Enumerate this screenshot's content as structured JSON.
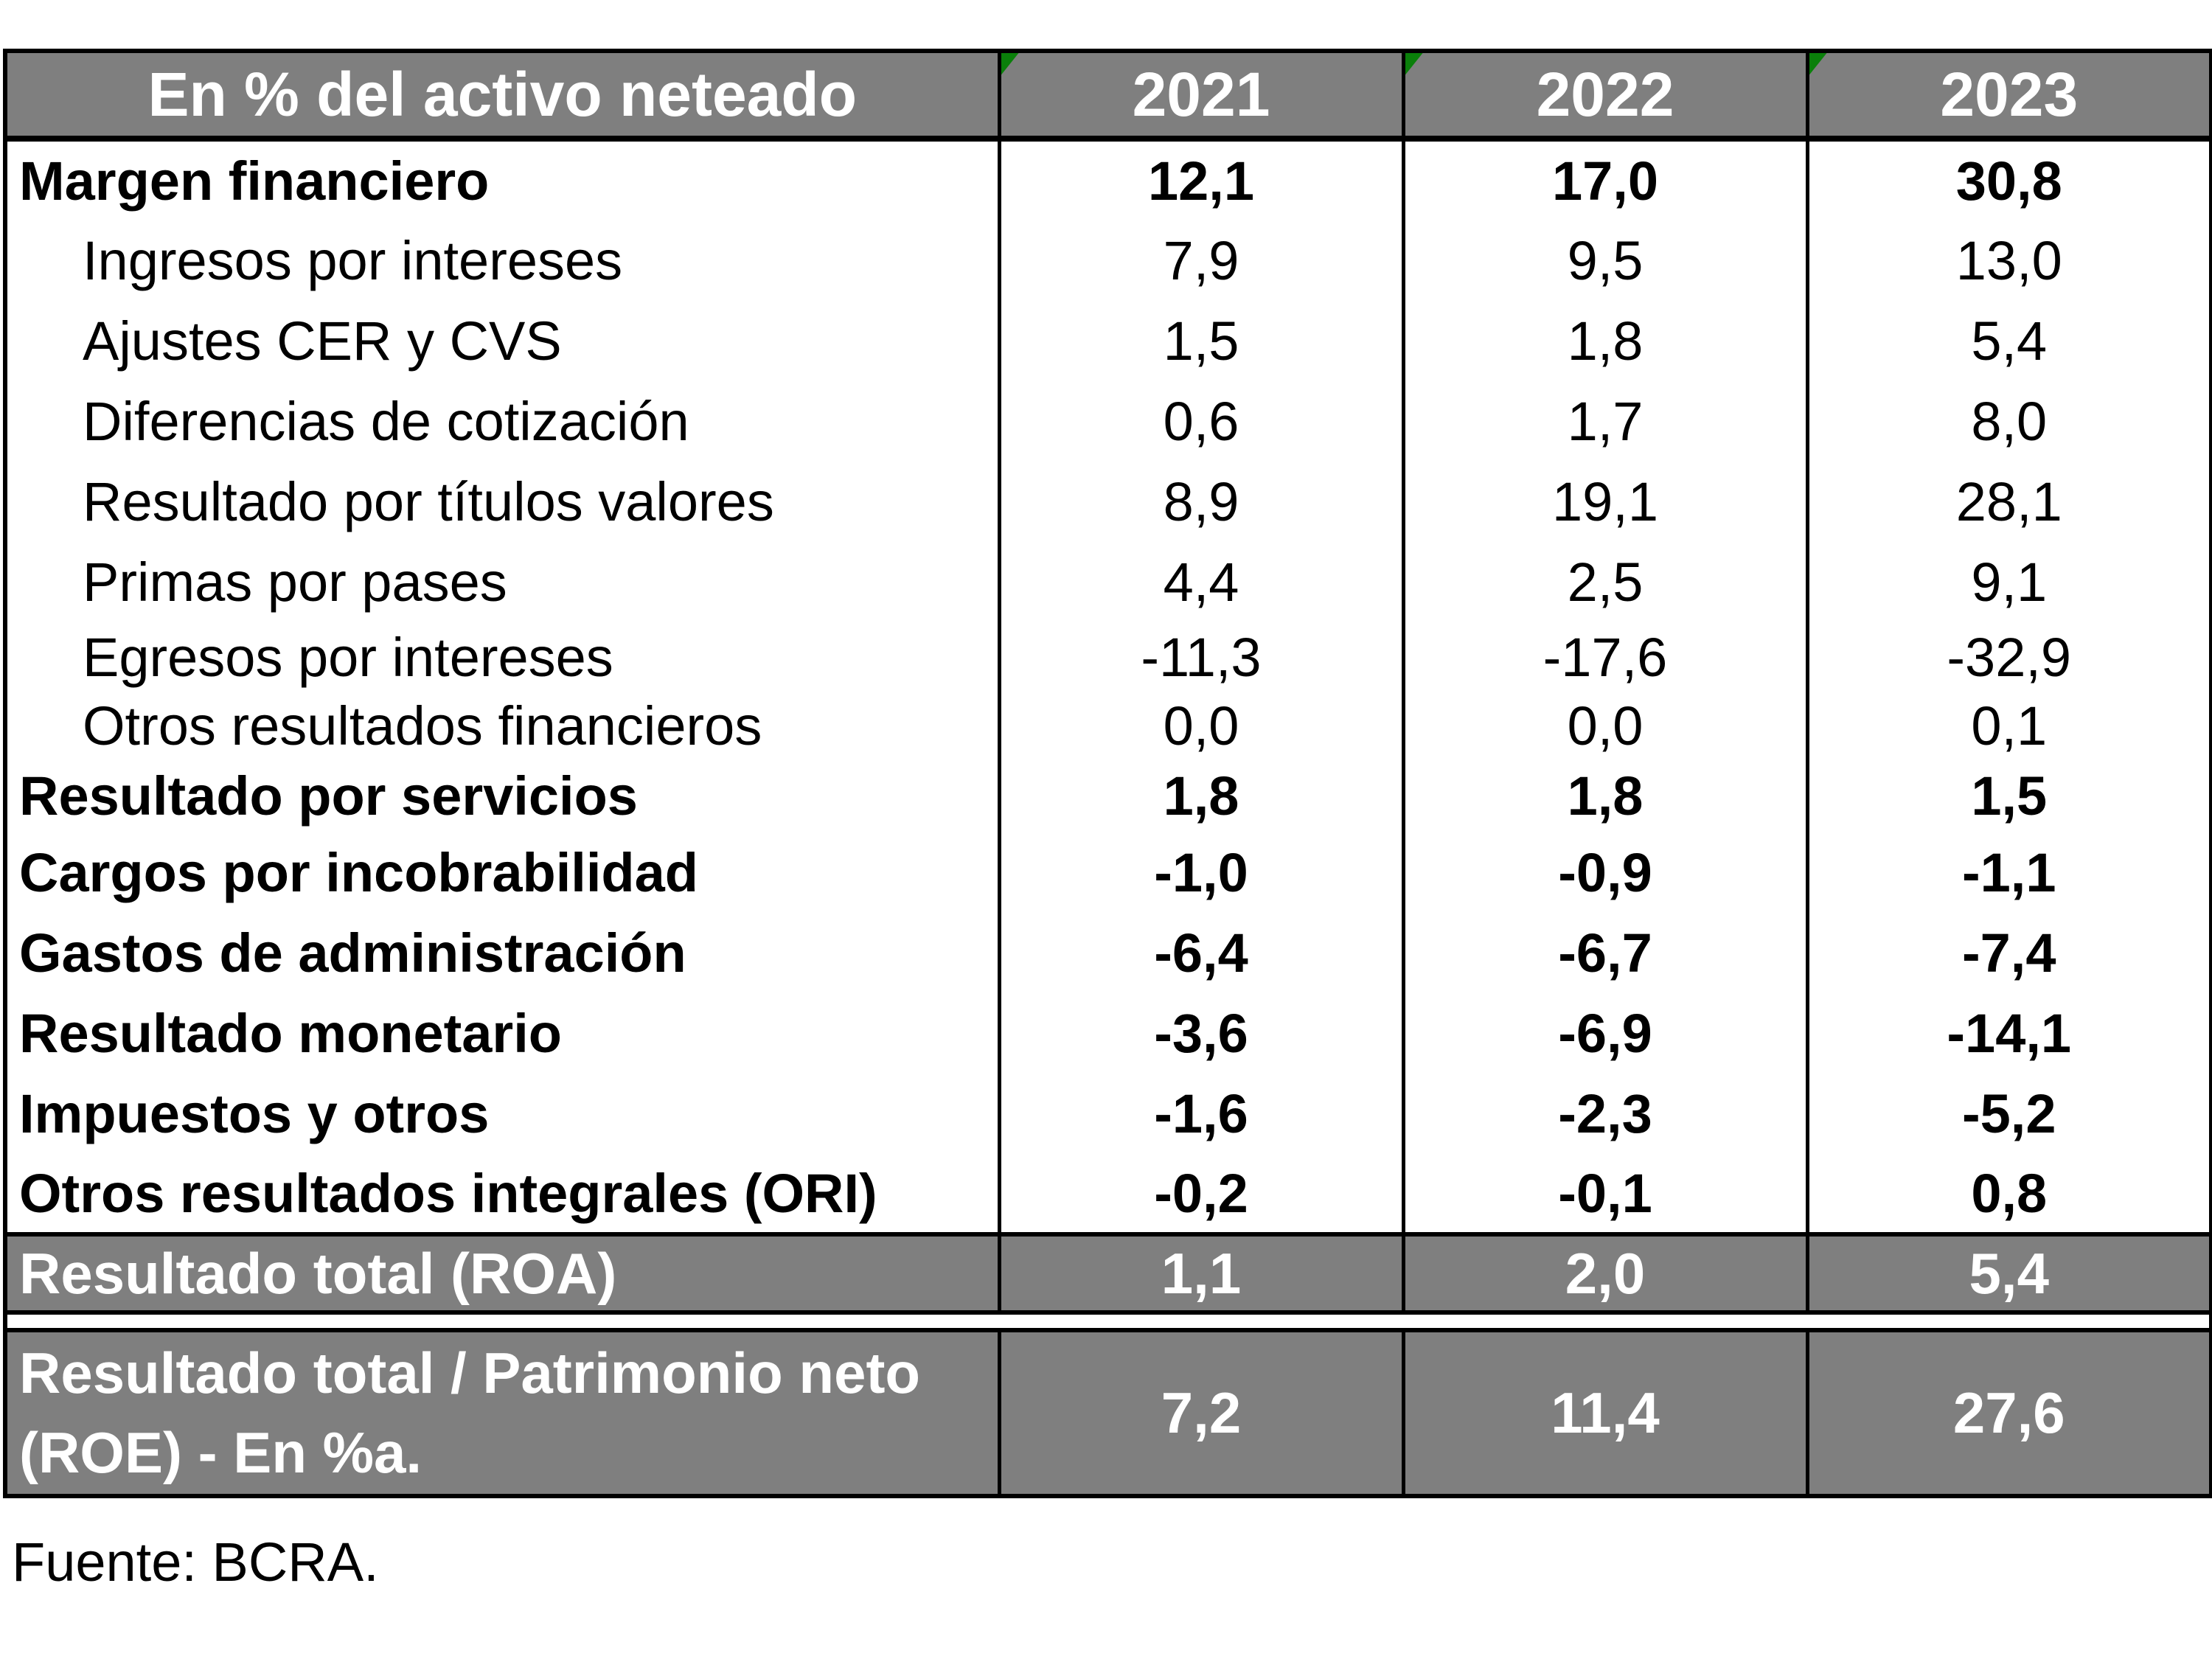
{
  "chart_data": {
    "type": "table",
    "title": "En % del activo neteado",
    "columns": [
      "2021",
      "2022",
      "2023"
    ],
    "rows": [
      {
        "label": "Margen financiero",
        "type": "section",
        "values": [
          "12,1",
          "17,0",
          "30,8"
        ]
      },
      {
        "label": "Ingresos por intereses",
        "type": "item",
        "values": [
          "7,9",
          "9,5",
          "13,0"
        ]
      },
      {
        "label": "Ajustes CER y CVS",
        "type": "item",
        "values": [
          "1,5",
          "1,8",
          "5,4"
        ]
      },
      {
        "label": "Diferencias de cotización",
        "type": "item",
        "values": [
          "0,6",
          "1,7",
          "8,0"
        ]
      },
      {
        "label": "Resultado por títulos valores",
        "type": "item",
        "values": [
          "8,9",
          "19,1",
          "28,1"
        ]
      },
      {
        "label": "Primas por pases",
        "type": "item",
        "values": [
          "4,4",
          "2,5",
          "9,1"
        ]
      },
      {
        "label": "Egresos por intereses",
        "type": "item",
        "values": [
          "-11,3",
          "-17,6",
          "-32,9"
        ]
      },
      {
        "label": "Otros resultados financieros",
        "type": "item",
        "values": [
          "0,0",
          "0,0",
          "0,1"
        ]
      },
      {
        "label": "Resultado por servicios",
        "type": "section",
        "values": [
          "1,8",
          "1,8",
          "1,5"
        ]
      },
      {
        "label": "Cargos por incobrabilidad",
        "type": "section",
        "values": [
          "-1,0",
          "-0,9",
          "-1,1"
        ]
      },
      {
        "label": "Gastos de administración",
        "type": "section",
        "values": [
          "-6,4",
          "-6,7",
          "-7,4"
        ]
      },
      {
        "label": "Resultado monetario",
        "type": "section",
        "values": [
          "-3,6",
          "-6,9",
          "-14,1"
        ]
      },
      {
        "label": "Impuestos  y otros",
        "type": "section",
        "values": [
          "-1,6",
          "-2,3",
          "-5,2"
        ]
      },
      {
        "label": "Otros resultados integrales (ORI)",
        "type": "section",
        "values": [
          "-0,2",
          "-0,1",
          "0,8"
        ]
      }
    ],
    "summary_rows": [
      {
        "label": "Resultado total (ROA)",
        "values": [
          "1,1",
          "2,0",
          "5,4"
        ]
      },
      {
        "label": "Resultado total / Patrimonio neto (ROE) - En %a.",
        "values": [
          "7,2",
          "11,4",
          "27,6"
        ]
      }
    ],
    "source_note": "Fuente: BCRA.",
    "layout_hints": {
      "grid": "vertical separators only in body",
      "legend_position": "none"
    }
  },
  "colors": {
    "header_bg": "#7f7f7f",
    "header_text": "#ffffff",
    "body_text": "#000000",
    "border": "#000000",
    "flag_green": "#0a7f0a",
    "background": "#ffffff"
  }
}
